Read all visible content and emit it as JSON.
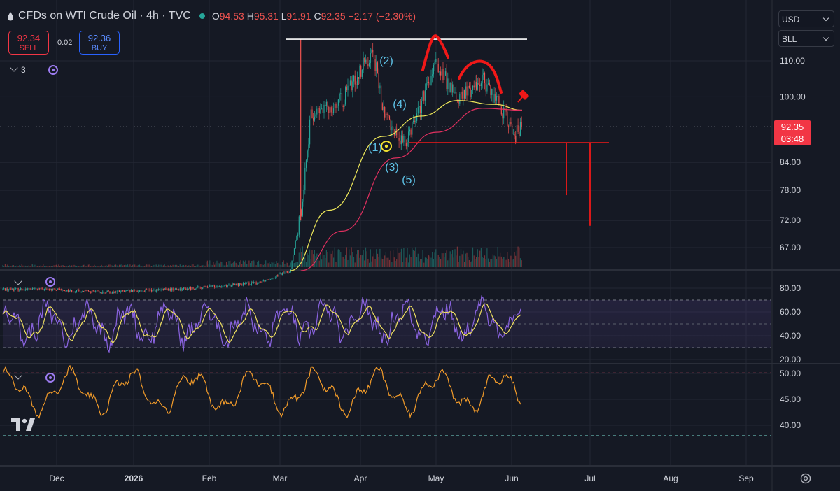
{
  "header": {
    "title": "CFDs on WTI Crude Oil · 4h · TVC",
    "open_label": "O",
    "open": "94.53",
    "high_label": "H",
    "high": "95.31",
    "low_label": "L",
    "low": "91.91",
    "close_label": "C",
    "close": "92.35",
    "change": "−2.17 (−2.30%)"
  },
  "trade": {
    "sell_price": "92.34",
    "sell_label": "SELL",
    "spread": "0.02",
    "buy_price": "92.36",
    "buy_label": "BUY"
  },
  "controls": {
    "indicator_count": "3",
    "currency": "USD",
    "unit": "BLL"
  },
  "price_tag": {
    "price": "92.35",
    "countdown": "03:48"
  },
  "colors": {
    "background": "#151924",
    "up": "#26a69a",
    "down": "#ef5350",
    "ma_fast": "#f0ea5a",
    "ma_slow": "#e0305f",
    "rsi": "#8a63e0",
    "rsi_ma": "#f0e060",
    "osc": "#f39c2a",
    "annotation_red": "#f01818",
    "annotation_white": "#ffffff",
    "wave_label": "#5ec3e8"
  },
  "icons": [
    "droplet-icon",
    "chevron-down-icon",
    "sync-icon",
    "tradingview-logo-icon",
    "gear-icon"
  ],
  "chart_data": [
    {
      "type": "candlestick",
      "x_ticks": [
        "Dec",
        "2026",
        "Feb",
        "Mar",
        "Apr",
        "May",
        "Jun",
        "Jul",
        "Aug",
        "Sep"
      ],
      "y_ticks": [
        110.0,
        100.0,
        84.0,
        78.0,
        72.0,
        67.0
      ],
      "y_tick_labels": [
        "110.00",
        "100.00",
        "84.00",
        "78.00",
        "72.00",
        "67.00"
      ],
      "scale": "log",
      "ylim": [
        63,
        120
      ],
      "grid": true,
      "price_path_approx": {
        "dates": [
          "2025-11-25",
          "2025-12-20",
          "2026-01-20",
          "2026-02-20",
          "2026-03-05",
          "2026-03-09",
          "2026-03-13",
          "2026-03-25",
          "2026-04-06",
          "2026-04-10",
          "2026-04-18",
          "2026-04-25",
          "2026-05-01",
          "2026-05-10",
          "2026-05-20",
          "2026-05-27",
          "2026-06-02",
          "2026-06-05"
        ],
        "close": [
          60,
          59.5,
          60,
          61,
          63,
          73,
          95,
          99,
          113,
          96,
          88,
          98,
          109,
          99,
          105,
          98,
          90,
          92.35
        ]
      },
      "moving_averages": [
        {
          "dates": [
            "2026-03-05",
            "2026-03-20",
            "2026-04-10",
            "2026-04-25",
            "2026-05-10",
            "2026-05-25",
            "2026-06-05"
          ],
          "values": [
            63,
            74,
            90,
            95,
            99,
            98,
            96.5
          ]
        },
        {
          "dates": [
            "2026-03-09",
            "2026-03-25",
            "2026-04-15",
            "2026-05-01",
            "2026-05-20",
            "2026-06-05"
          ],
          "values": [
            63,
            70,
            85,
            91,
            97,
            96.5
          ]
        }
      ],
      "wave_labels": [
        "(1)",
        "(2)",
        "(3)",
        "(4)",
        "(5)"
      ],
      "annotations": {
        "neckline_price": 88.5,
        "resistance_price": 116.5,
        "target_1_price": 77,
        "target_2_price": 71
      }
    },
    {
      "type": "line",
      "y_ticks": [
        80.0,
        60.0,
        40.0,
        20.0
      ],
      "y_tick_labels": [
        "80.00",
        "60.00",
        "40.00",
        "20.00"
      ],
      "ylim": [
        18,
        84
      ],
      "bands": [
        30,
        50,
        70
      ]
    },
    {
      "type": "line",
      "y_ticks": [
        50.0,
        45.0,
        40.0
      ],
      "y_tick_labels": [
        "50.00",
        "45.00",
        "40.00"
      ],
      "ylim": [
        37.5,
        52
      ],
      "bands": [
        38,
        50.1
      ]
    }
  ]
}
